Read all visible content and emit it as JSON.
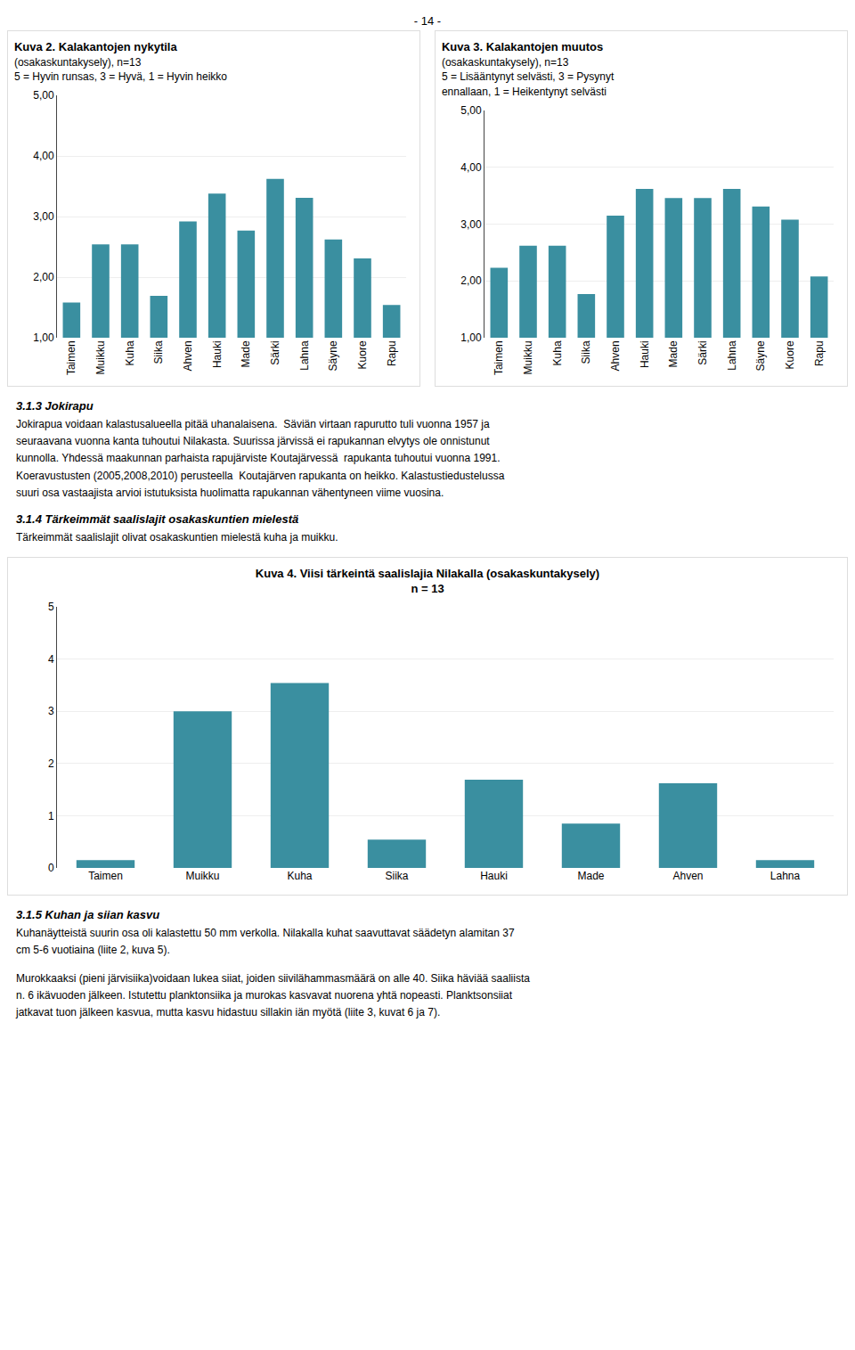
{
  "page_title": "- 14 -",
  "chart_data": [
    {
      "type": "bar",
      "title": "Kuva 2. Kalakantojen nykytila",
      "subtitle": [
        "(osakaskuntakysely), n=13",
        "5 = Hyvin runsas, 3 = Hyvä, 1 = Hyvin heikko"
      ],
      "categories": [
        "Taimen",
        "Muikku",
        "Kuha",
        "Siika",
        "Ahven",
        "Hauki",
        "Made",
        "Särki",
        "Lahna",
        "Säyne",
        "Kuore",
        "Rapu"
      ],
      "values": [
        1.58,
        2.54,
        2.54,
        1.69,
        2.92,
        3.38,
        2.77,
        3.62,
        3.31,
        2.62,
        2.31,
        1.54
      ],
      "color": "#3a8fa0",
      "ylim": [
        1.0,
        5.0
      ],
      "yticks": [
        {
          "value": 1.0,
          "label": "1,00"
        },
        {
          "value": 2.0,
          "label": "2,00"
        },
        {
          "value": 3.0,
          "label": "3,00"
        },
        {
          "value": 4.0,
          "label": "4,00"
        },
        {
          "value": 5.0,
          "label": "5,00"
        }
      ],
      "grid": true
    },
    {
      "type": "bar",
      "title": "Kuva 3. Kalakantojen muutos",
      "subtitle": [
        "(osakaskuntakysely), n=13",
        "5 = Lisääntynyt selvästi, 3 = Pysynyt",
        "ennallaan, 1 = Heikentynyt selvästi"
      ],
      "categories": [
        "Taimen",
        "Muikku",
        "Kuha",
        "Siika",
        "Ahven",
        "Hauki",
        "Made",
        "Särki",
        "Lahna",
        "Säyne",
        "Kuore",
        "Rapu"
      ],
      "values": [
        2.23,
        2.62,
        2.62,
        1.77,
        3.15,
        3.62,
        3.46,
        3.46,
        3.62,
        3.31,
        3.08,
        2.08
      ],
      "color": "#3a8fa0",
      "ylim": [
        1.0,
        5.0
      ],
      "yticks": [
        {
          "value": 1.0,
          "label": "1,00"
        },
        {
          "value": 2.0,
          "label": "2,00"
        },
        {
          "value": 3.0,
          "label": "3,00"
        },
        {
          "value": 4.0,
          "label": "4,00"
        },
        {
          "value": 5.0,
          "label": "5,00"
        }
      ],
      "grid": true
    },
    {
      "type": "bar",
      "title": "Kuva 4. Viisi tärkeintä saalislajia Nilakalla (osakaskuntakysely)",
      "subtitle": "n = 13",
      "categories": [
        "Taimen",
        "Muikku",
        "Kuha",
        "Siika",
        "Hauki",
        "Made",
        "Ahven",
        "Lahna"
      ],
      "values": [
        0.15,
        3.0,
        3.54,
        0.54,
        1.69,
        0.85,
        1.62,
        0.15
      ],
      "color": "#3a8fa0",
      "ylim": [
        0,
        5
      ],
      "yticks": [
        0,
        1,
        2,
        3,
        4,
        5
      ],
      "grid": true
    }
  ],
  "sections": [
    {
      "title": "3.1.3 Jokirapu",
      "paragraphs": [
        "Jokirapua voidaan kalastusalueella pitää uhanalaisena.  Säviän virtaan rapurutto tuli vuonna 1957 ja\nseuraavana vuonna kanta tuhoutui Nilakasta. Suurissa järvissä ei rapukannan elvytys ole onnistunut\nkunnolla. Yhdessä maakunnan parhaista rapujärviste Koutajärvessä  rapukanta tuhoutui vuonna 1991.\nKoeravustusten (2005,2008,2010) perusteella  Koutajärven rapukanta on heikko. Kalastustiedustelussa\nsuuri osa vastaajista arvioi istutuksista huolimatta rapukannan vähentyneen viime vuosina."
      ]
    },
    {
      "title": "3.1.4 Tärkeimmät saalislajit osakaskuntien mielestä",
      "paragraphs": [
        "Tärkeimmät saalislajit olivat osakaskuntien mielestä kuha ja muikku."
      ]
    },
    {
      "title": "3.1.5 Kuhan ja siian kasvu",
      "paragraphs": [
        "Kuhanäytteistä suurin osa oli kalastettu 50 mm verkolla. Nilakalla kuhat saavuttavat säädetyn alamitan 37\ncm 5-6 vuotiaina (liite 2, kuva 5).",
        "Murokkaaksi (pieni järvisiika)voidaan lukea siiat, joiden siivilähammasmäärä on alle 40. Siika häviää saaliista\nn. 6 ikävuoden jälkeen. Istutettu planktonsiika ja murokas kasvavat nuorena yhtä nopeasti. Planktsonsiiat\njatkavat tuon jälkeen kasvua, mutta kasvu hidastuu sillakin iän myötä (liite 3, kuvat 6 ja 7)."
      ]
    }
  ]
}
